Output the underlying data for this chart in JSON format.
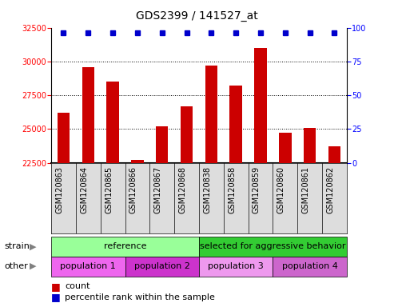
{
  "title": "GDS2399 / 141527_at",
  "samples": [
    "GSM120863",
    "GSM120864",
    "GSM120865",
    "GSM120866",
    "GSM120867",
    "GSM120868",
    "GSM120838",
    "GSM120858",
    "GSM120859",
    "GSM120860",
    "GSM120861",
    "GSM120862"
  ],
  "counts": [
    26200,
    29600,
    28500,
    22700,
    25200,
    26700,
    29700,
    28200,
    31000,
    24700,
    25100,
    23700
  ],
  "percentile_ranks": [
    100,
    100,
    100,
    100,
    100,
    100,
    100,
    100,
    100,
    100,
    100,
    100
  ],
  "ylim_left": [
    22500,
    32500
  ],
  "ylim_right": [
    0,
    100
  ],
  "yticks_left": [
    22500,
    25000,
    27500,
    30000,
    32500
  ],
  "yticks_right": [
    0,
    25,
    50,
    75,
    100
  ],
  "bar_color": "#cc0000",
  "dot_color": "#0000cc",
  "bg_color": "#dddddd",
  "strain_groups": [
    {
      "label": "reference",
      "start": 0,
      "end": 6,
      "color": "#99ff99"
    },
    {
      "label": "selected for aggressive behavior",
      "start": 6,
      "end": 12,
      "color": "#33cc33"
    }
  ],
  "other_groups": [
    {
      "label": "population 1",
      "start": 0,
      "end": 3,
      "color": "#ee66ee"
    },
    {
      "label": "population 2",
      "start": 3,
      "end": 6,
      "color": "#cc33cc"
    },
    {
      "label": "population 3",
      "start": 6,
      "end": 9,
      "color": "#ee99ee"
    },
    {
      "label": "population 4",
      "start": 9,
      "end": 12,
      "color": "#cc66cc"
    }
  ],
  "strain_label": "strain",
  "other_label": "other",
  "legend_count_label": "count",
  "legend_pct_label": "percentile rank within the sample",
  "bar_width": 0.5,
  "title_fontsize": 10,
  "tick_fontsize": 7,
  "label_fontsize": 8,
  "row_fontsize": 8
}
